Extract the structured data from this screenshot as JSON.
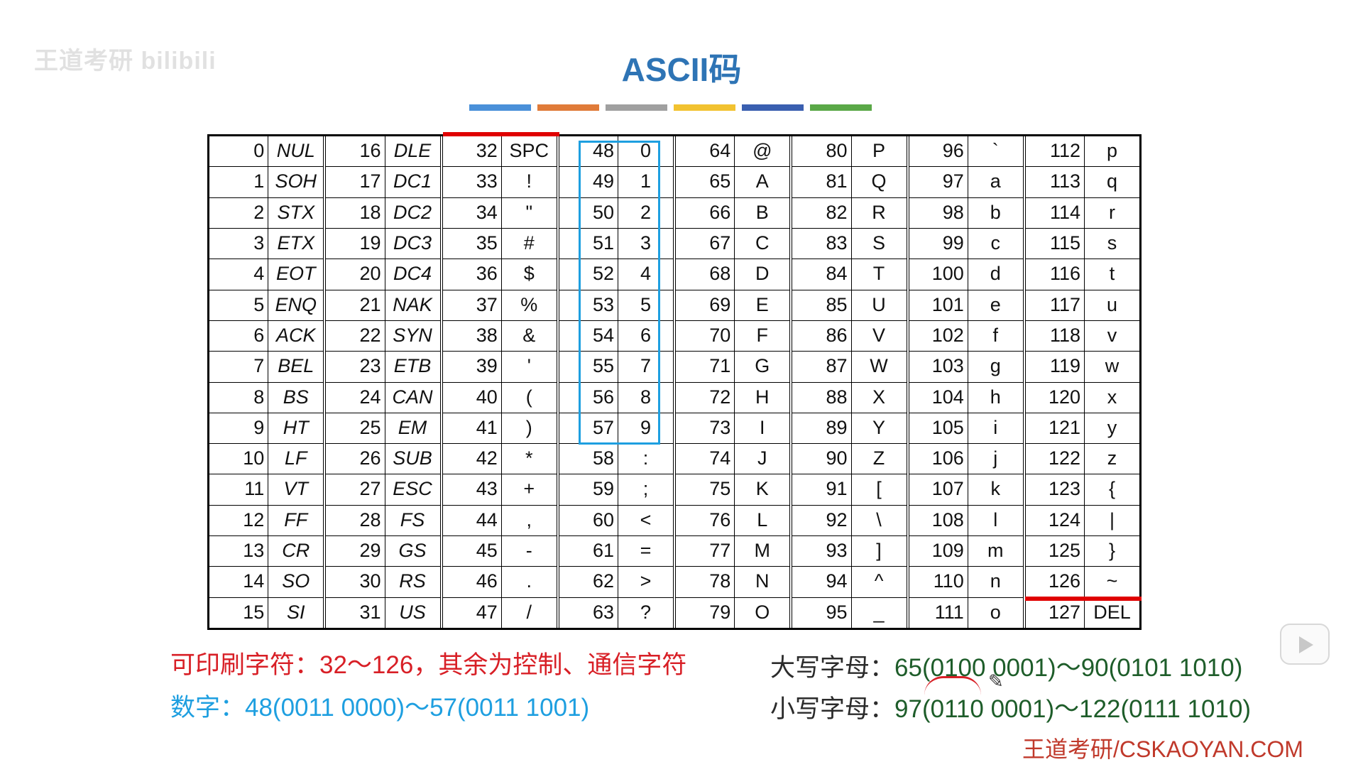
{
  "watermark": "王道考研 bilibili",
  "title": "ASCII码",
  "bars": [
    "#4a90d9",
    "#e07b39",
    "#a0a0a0",
    "#f2c230",
    "#3a5fb0",
    "#5aa847"
  ],
  "columns": [
    [
      [
        "0",
        "NUL"
      ],
      [
        "1",
        "SOH"
      ],
      [
        "2",
        "STX"
      ],
      [
        "3",
        "ETX"
      ],
      [
        "4",
        "EOT"
      ],
      [
        "5",
        "ENQ"
      ],
      [
        "6",
        "ACK"
      ],
      [
        "7",
        "BEL"
      ],
      [
        "8",
        "BS"
      ],
      [
        "9",
        "HT"
      ],
      [
        "10",
        "LF"
      ],
      [
        "11",
        "VT"
      ],
      [
        "12",
        "FF"
      ],
      [
        "13",
        "CR"
      ],
      [
        "14",
        "SO"
      ],
      [
        "15",
        "SI"
      ]
    ],
    [
      [
        "16",
        "DLE"
      ],
      [
        "17",
        "DC1"
      ],
      [
        "18",
        "DC2"
      ],
      [
        "19",
        "DC3"
      ],
      [
        "20",
        "DC4"
      ],
      [
        "21",
        "NAK"
      ],
      [
        "22",
        "SYN"
      ],
      [
        "23",
        "ETB"
      ],
      [
        "24",
        "CAN"
      ],
      [
        "25",
        "EM"
      ],
      [
        "26",
        "SUB"
      ],
      [
        "27",
        "ESC"
      ],
      [
        "28",
        "FS"
      ],
      [
        "29",
        "GS"
      ],
      [
        "30",
        "RS"
      ],
      [
        "31",
        "US"
      ]
    ],
    [
      [
        "32",
        "SPC"
      ],
      [
        "33",
        "!"
      ],
      [
        "34",
        "\""
      ],
      [
        "35",
        "#"
      ],
      [
        "36",
        "$"
      ],
      [
        "37",
        "%"
      ],
      [
        "38",
        "&"
      ],
      [
        "39",
        "'"
      ],
      [
        "40",
        "("
      ],
      [
        "41",
        ")"
      ],
      [
        "42",
        "*"
      ],
      [
        "43",
        "+"
      ],
      [
        "44",
        ","
      ],
      [
        "45",
        "-"
      ],
      [
        "46",
        "."
      ],
      [
        "47",
        "/"
      ]
    ],
    [
      [
        "48",
        "0"
      ],
      [
        "49",
        "1"
      ],
      [
        "50",
        "2"
      ],
      [
        "51",
        "3"
      ],
      [
        "52",
        "4"
      ],
      [
        "53",
        "5"
      ],
      [
        "54",
        "6"
      ],
      [
        "55",
        "7"
      ],
      [
        "56",
        "8"
      ],
      [
        "57",
        "9"
      ],
      [
        "58",
        ":"
      ],
      [
        "59",
        ";"
      ],
      [
        "60",
        "<"
      ],
      [
        "61",
        "="
      ],
      [
        "62",
        ">"
      ],
      [
        "63",
        "?"
      ]
    ],
    [
      [
        "64",
        "@"
      ],
      [
        "65",
        "A"
      ],
      [
        "66",
        "B"
      ],
      [
        "67",
        "C"
      ],
      [
        "68",
        "D"
      ],
      [
        "69",
        "E"
      ],
      [
        "70",
        "F"
      ],
      [
        "71",
        "G"
      ],
      [
        "72",
        "H"
      ],
      [
        "73",
        "I"
      ],
      [
        "74",
        "J"
      ],
      [
        "75",
        "K"
      ],
      [
        "76",
        "L"
      ],
      [
        "77",
        "M"
      ],
      [
        "78",
        "N"
      ],
      [
        "79",
        "O"
      ]
    ],
    [
      [
        "80",
        "P"
      ],
      [
        "81",
        "Q"
      ],
      [
        "82",
        "R"
      ],
      [
        "83",
        "S"
      ],
      [
        "84",
        "T"
      ],
      [
        "85",
        "U"
      ],
      [
        "86",
        "V"
      ],
      [
        "87",
        "W"
      ],
      [
        "88",
        "X"
      ],
      [
        "89",
        "Y"
      ],
      [
        "90",
        "Z"
      ],
      [
        "91",
        "["
      ],
      [
        "92",
        "\\"
      ],
      [
        "93",
        "]"
      ],
      [
        "94",
        "^"
      ],
      [
        "95",
        "_"
      ]
    ],
    [
      [
        "96",
        "`"
      ],
      [
        "97",
        "a"
      ],
      [
        "98",
        "b"
      ],
      [
        "99",
        "c"
      ],
      [
        "100",
        "d"
      ],
      [
        "101",
        "e"
      ],
      [
        "102",
        "f"
      ],
      [
        "103",
        "g"
      ],
      [
        "104",
        "h"
      ],
      [
        "105",
        "i"
      ],
      [
        "106",
        "j"
      ],
      [
        "107",
        "k"
      ],
      [
        "108",
        "l"
      ],
      [
        "109",
        "m"
      ],
      [
        "110",
        "n"
      ],
      [
        "111",
        "o"
      ]
    ],
    [
      [
        "112",
        "p"
      ],
      [
        "113",
        "q"
      ],
      [
        "114",
        "r"
      ],
      [
        "115",
        "s"
      ],
      [
        "116",
        "t"
      ],
      [
        "117",
        "u"
      ],
      [
        "118",
        "v"
      ],
      [
        "119",
        "w"
      ],
      [
        "120",
        "x"
      ],
      [
        "121",
        "y"
      ],
      [
        "122",
        "z"
      ],
      [
        "123",
        "{"
      ],
      [
        "124",
        "|"
      ],
      [
        "125",
        "}"
      ],
      [
        "126",
        "~"
      ],
      [
        "127",
        "DEL"
      ]
    ]
  ],
  "notes": {
    "printable": "可印刷字符：32～126，其余为控制、通信字符",
    "digits": "数字：48(0011 0000)～57(0011 1001)",
    "upper_label": "大写字母：",
    "upper_value": "65(0100 0001)～90(0101 1010)",
    "lower_label": "小写字母：",
    "lower_value": "97(0110 0001)～122(0111 1010)"
  },
  "footer": "王道考研/CSKAOYAN.COM",
  "icons": {
    "play": "play-icon",
    "pencil": "pencil-icon"
  },
  "colors": {
    "title": "#2e74b5",
    "highlight_red": "#e00000",
    "digit_box": "#1e9fe0"
  }
}
